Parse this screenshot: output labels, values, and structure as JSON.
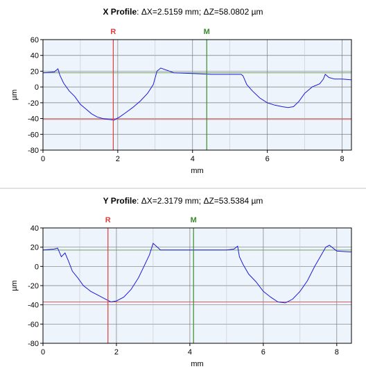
{
  "chart_data": [
    {
      "type": "line",
      "title_bold": "X Profile",
      "title_rest": ": ΔX=2.5159 mm; ΔZ=58.0802 µm",
      "xlabel": "mm",
      "ylabel": "µm",
      "xlim": [
        0,
        8.25
      ],
      "ylim": [
        -80,
        60
      ],
      "xticks": [
        "0",
        "2",
        "4",
        "6",
        "8"
      ],
      "yticks": [
        "60",
        "40",
        "20",
        "0",
        "-20",
        "-40",
        "-60",
        "-80"
      ],
      "grid": true,
      "markers": [
        {
          "name": "R",
          "x": 1.88,
          "color": "#e23b3b"
        },
        {
          "name": "M",
          "x": 4.38,
          "color": "#3a8a2a"
        }
      ],
      "reference_lines": [
        {
          "y": 18,
          "color": "#6e9f5e"
        },
        {
          "y": -41,
          "color": "#e25a5a"
        }
      ],
      "series": [
        {
          "color": "#1a1adc",
          "x": [
            0,
            0.3,
            0.4,
            0.45,
            0.55,
            0.7,
            0.85,
            1.0,
            1.15,
            1.3,
            1.45,
            1.6,
            1.75,
            1.9,
            2.05,
            2.2,
            2.4,
            2.6,
            2.8,
            2.95,
            3.05,
            3.15,
            3.5,
            4.0,
            4.5,
            5.0,
            5.3,
            5.35,
            5.45,
            5.6,
            5.8,
            6.0,
            6.2,
            6.4,
            6.55,
            6.7,
            6.85,
            7.0,
            7.2,
            7.4,
            7.5,
            7.55,
            7.65,
            7.8,
            8.0,
            8.25
          ],
          "y": [
            18,
            19,
            23,
            15,
            5,
            -5,
            -12,
            -22,
            -28,
            -34,
            -38,
            -40,
            -41,
            -42,
            -38,
            -33,
            -26,
            -18,
            -8,
            3,
            20,
            24,
            18,
            17,
            16,
            16,
            16,
            14,
            3,
            -5,
            -14,
            -20,
            -23,
            -25,
            -26,
            -25,
            -18,
            -8,
            0,
            4,
            10,
            16,
            12,
            10,
            10,
            9
          ]
        }
      ]
    },
    {
      "type": "line",
      "title_bold": "Y Profile",
      "title_rest": ": ΔX=2.3179 mm; ΔZ=53.5384 µm",
      "xlabel": "mm",
      "ylabel": "µm",
      "xlim": [
        0,
        8.4
      ],
      "ylim": [
        -80,
        40
      ],
      "xticks": [
        "0",
        "2",
        "4",
        "6",
        "8"
      ],
      "yticks": [
        "40",
        "20",
        "0",
        "-20",
        "-40",
        "-60",
        "-80"
      ],
      "grid": true,
      "markers": [
        {
          "name": "R",
          "x": 1.77,
          "color": "#e23b3b"
        },
        {
          "name": "M",
          "x": 4.1,
          "color": "#3a8a2a"
        }
      ],
      "reference_lines": [
        {
          "y": 17,
          "color": "#6e9f5e"
        },
        {
          "y": -37,
          "color": "#e25a5a"
        }
      ],
      "series": [
        {
          "color": "#1a1adc",
          "x": [
            0,
            0.3,
            0.4,
            0.5,
            0.6,
            0.7,
            0.8,
            0.95,
            1.1,
            1.3,
            1.5,
            1.7,
            1.85,
            2.0,
            2.2,
            2.4,
            2.6,
            2.75,
            2.9,
            3.0,
            3.2,
            3.6,
            4.0,
            4.5,
            5.0,
            5.2,
            5.3,
            5.35,
            5.45,
            5.6,
            5.8,
            6.0,
            6.2,
            6.4,
            6.6,
            6.8,
            7.0,
            7.2,
            7.4,
            7.55,
            7.7,
            7.8,
            8.0,
            8.4
          ],
          "y": [
            17,
            18,
            19,
            10,
            14,
            5,
            -5,
            -12,
            -20,
            -26,
            -30,
            -34,
            -37,
            -36,
            -32,
            -24,
            -12,
            0,
            12,
            24,
            17,
            17,
            17,
            17,
            17,
            18,
            21,
            10,
            2,
            -8,
            -16,
            -26,
            -32,
            -37,
            -38,
            -34,
            -26,
            -15,
            0,
            10,
            20,
            22,
            16,
            15
          ]
        }
      ]
    }
  ]
}
